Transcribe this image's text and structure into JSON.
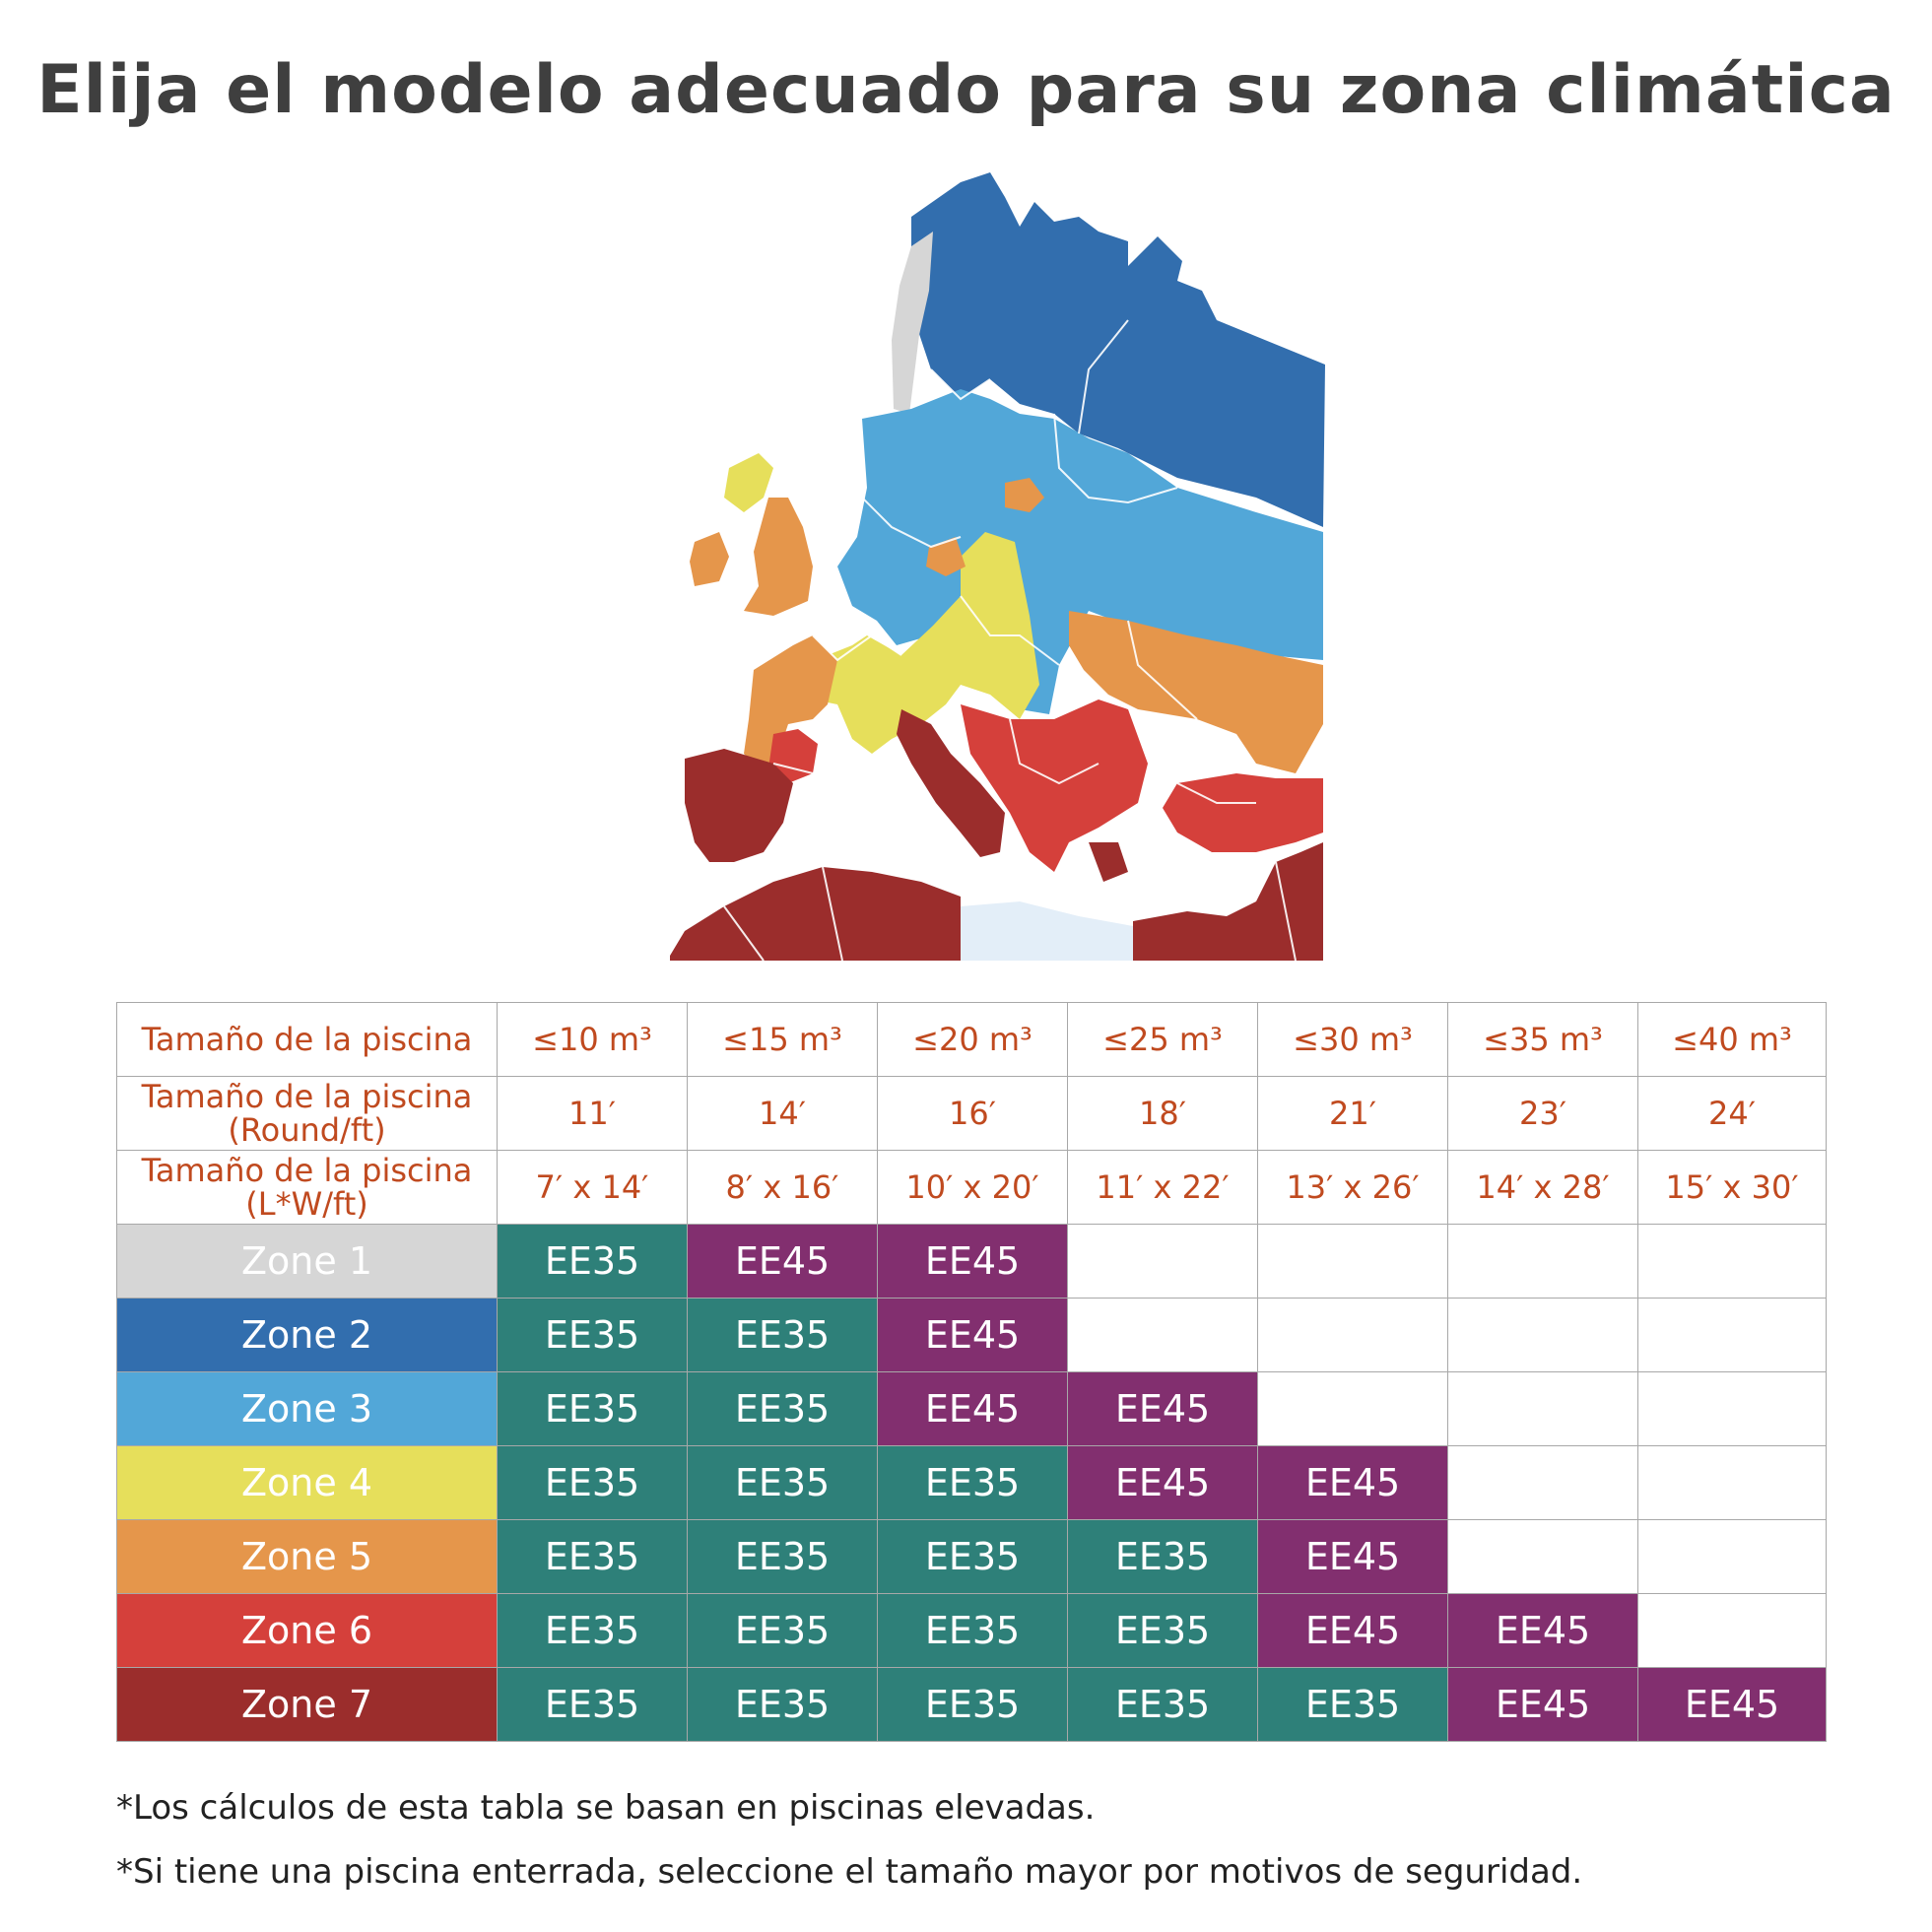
{
  "title": "Elija el modelo adecuado para su zona climática",
  "colors": {
    "zone1": "#d6d6d6",
    "zone2": "#326eae",
    "zone3": "#52a7d8",
    "zone4": "#e6df5b",
    "zone5": "#e5964b",
    "zone6": "#d5403b",
    "zone7": "#9b2d2c",
    "ee35": "#2e8079",
    "ee45": "#822f6f",
    "header_text": "#c04a1f"
  },
  "table": {
    "rows_header": [
      {
        "label": "Tamaño de la piscina",
        "values": [
          "≤10 m³",
          "≤15 m³",
          "≤20 m³",
          "≤25 m³",
          "≤30 m³",
          "≤35 m³",
          "≤40 m³"
        ]
      },
      {
        "label": "Tamaño de la piscina (Round/ft)",
        "values": [
          "11′",
          "14′",
          "16′",
          "18′",
          "21′",
          "23′",
          "24′"
        ]
      },
      {
        "label": "Tamaño de la piscina (L*W/ft)",
        "values": [
          "7′ x 14′",
          "8′ x 16′",
          "10′ x 20′",
          "11′ x 22′",
          "13′ x 26′",
          "14′ x 28′",
          "15′ x 30′"
        ]
      }
    ],
    "zones": [
      {
        "label": "Zone 1",
        "cells": [
          "EE35",
          "EE45",
          "EE45",
          "",
          "",
          "",
          ""
        ]
      },
      {
        "label": "Zone 2",
        "cells": [
          "EE35",
          "EE35",
          "EE45",
          "",
          "",
          "",
          ""
        ]
      },
      {
        "label": "Zone 3",
        "cells": [
          "EE35",
          "EE35",
          "EE45",
          "EE45",
          "",
          "",
          ""
        ]
      },
      {
        "label": "Zone 4",
        "cells": [
          "EE35",
          "EE35",
          "EE35",
          "EE45",
          "EE45",
          "",
          ""
        ]
      },
      {
        "label": "Zone 5",
        "cells": [
          "EE35",
          "EE35",
          "EE35",
          "EE35",
          "EE45",
          "",
          ""
        ]
      },
      {
        "label": "Zone 6",
        "cells": [
          "EE35",
          "EE35",
          "EE35",
          "EE35",
          "EE45",
          "EE45",
          ""
        ]
      },
      {
        "label": "Zone 7",
        "cells": [
          "EE35",
          "EE35",
          "EE35",
          "EE35",
          "EE35",
          "EE45",
          "EE45"
        ]
      }
    ]
  },
  "notes": {
    "note1": "*Los cálculos de esta tabla se basan en piscinas elevadas.",
    "note2": "*Si tiene una piscina enterrada, seleccione el tamaño mayor por motivos de seguridad."
  }
}
